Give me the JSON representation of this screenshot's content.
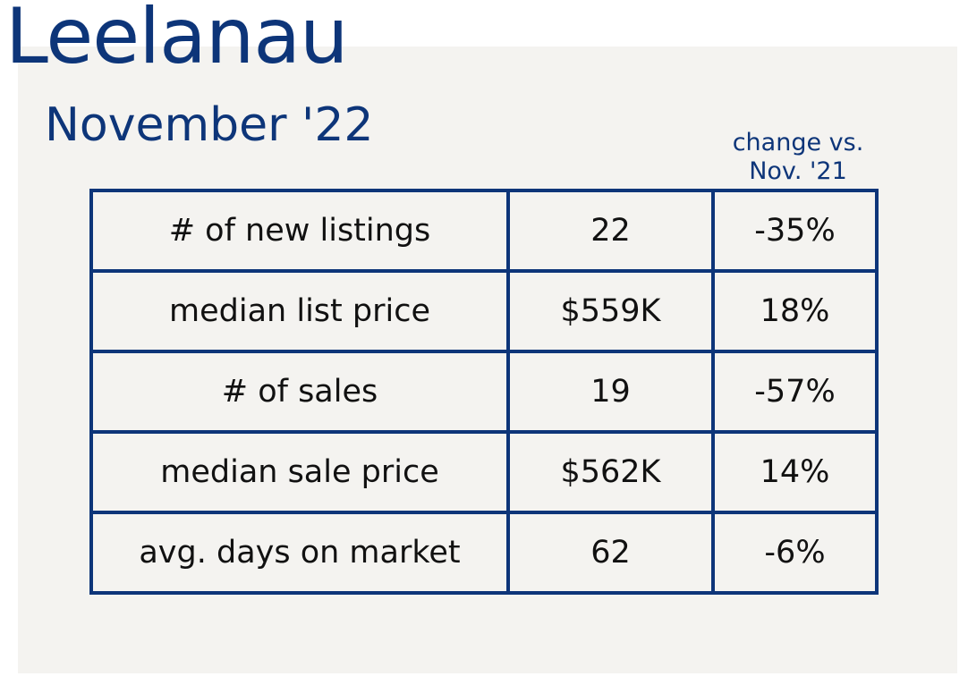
{
  "title": "Leelanau",
  "subtitle": "November '22",
  "change_header": {
    "line1": "change vs.",
    "line2": "Nov. '21"
  },
  "colors": {
    "navy": "#0d3579",
    "panel_background": "#f4f3f0",
    "text": "#111111"
  },
  "rows": [
    {
      "label": "# of new listings",
      "value": "22",
      "change": "-35%"
    },
    {
      "label": "median list price",
      "value": "$559K",
      "change": "18%"
    },
    {
      "label": "# of sales",
      "value": "19",
      "change": "-57%"
    },
    {
      "label": "median sale price",
      "value": "$562K",
      "change": "14%"
    },
    {
      "label": "avg. days on market",
      "value": "62",
      "change": "-6%"
    }
  ]
}
